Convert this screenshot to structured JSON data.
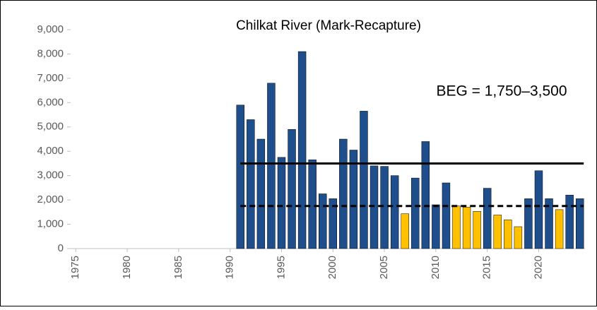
{
  "chart_data": {
    "type": "bar",
    "title": "Chilkat River (Mark-Recapture)",
    "annotation": "BEG = 1,750–3,500",
    "x": [
      1991,
      1992,
      1993,
      1994,
      1995,
      1996,
      1997,
      1998,
      1999,
      2000,
      2001,
      2002,
      2003,
      2004,
      2005,
      2006,
      2007,
      2008,
      2009,
      2010,
      2011,
      2012,
      2013,
      2014,
      2015,
      2016,
      2017,
      2018,
      2019,
      2020,
      2021,
      2022,
      2023,
      2024
    ],
    "values": [
      5900,
      5300,
      4500,
      6800,
      3750,
      4900,
      8100,
      3650,
      2250,
      2050,
      4500,
      4050,
      5650,
      3400,
      3380,
      3000,
      1430,
      2900,
      4400,
      1800,
      2700,
      1750,
      1700,
      1530,
      2480,
      1380,
      1180,
      900,
      2050,
      3200,
      2050,
      1600,
      2200,
      2050
    ],
    "colors": [
      "#1f4e8c",
      "#1f4e8c",
      "#1f4e8c",
      "#1f4e8c",
      "#1f4e8c",
      "#1f4e8c",
      "#1f4e8c",
      "#1f4e8c",
      "#1f4e8c",
      "#1f4e8c",
      "#1f4e8c",
      "#1f4e8c",
      "#1f4e8c",
      "#1f4e8c",
      "#1f4e8c",
      "#1f4e8c",
      "#ffc000",
      "#1f4e8c",
      "#1f4e8c",
      "#1f4e8c",
      "#1f4e8c",
      "#ffc000",
      "#ffc000",
      "#ffc000",
      "#1f4e8c",
      "#ffc000",
      "#ffc000",
      "#ffc000",
      "#1f4e8c",
      "#1f4e8c",
      "#1f4e8c",
      "#ffc000",
      "#1f4e8c",
      "#1f4e8c"
    ],
    "xlim": [
      1974.5,
      2024.5
    ],
    "xticks": [
      1975,
      1980,
      1985,
      1990,
      1995,
      2000,
      2005,
      2010,
      2015,
      2020
    ],
    "ylim": [
      0,
      9000
    ],
    "yticks": [
      0,
      {
        "value": 1000,
        "label": "1,000"
      },
      {
        "value": 2000,
        "label": "2,000"
      },
      {
        "value": 3000,
        "label": "3,000"
      },
      {
        "value": 4000,
        "label": "4,000"
      },
      {
        "value": 5000,
        "label": "5,000"
      },
      {
        "value": 6000,
        "label": "6,000"
      },
      {
        "value": 7000,
        "label": "7,000"
      },
      {
        "value": 8000,
        "label": "8,000"
      },
      {
        "value": 9000,
        "label": "9,000"
      }
    ],
    "goal_lines": [
      {
        "value": 3500,
        "style": "solid"
      },
      {
        "value": 1750,
        "style": "dashed"
      }
    ]
  }
}
